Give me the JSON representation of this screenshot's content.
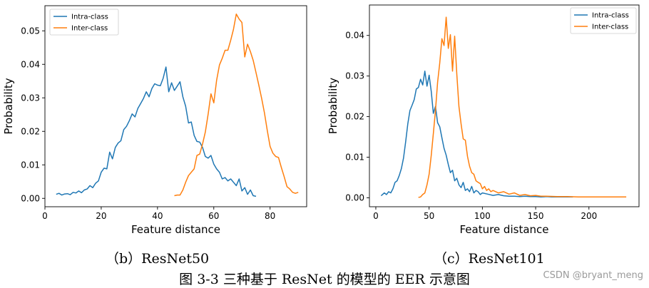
{
  "chart_data": [
    {
      "type": "line",
      "xlabel": "Feature distance",
      "ylabel": "Probability",
      "xlim": [
        0,
        93
      ],
      "ylim": [
        -0.0025,
        0.0575
      ],
      "xticks": [
        0,
        20,
        40,
        60,
        80
      ],
      "yticks": [
        0.0,
        0.01,
        0.02,
        0.03,
        0.04,
        0.05
      ],
      "ytick_labels": [
        "0.00",
        "0.01",
        "0.02",
        "0.03",
        "0.04",
        "0.05"
      ],
      "legend_position": "top-left",
      "series": [
        {
          "name": "Intra-class",
          "color": "#1f77b4",
          "x": [
            4,
            5,
            6,
            7,
            8,
            9,
            10,
            11,
            12,
            13,
            14,
            15,
            16,
            17,
            18,
            19,
            20,
            21,
            22,
            23,
            24,
            25,
            26,
            27,
            28,
            29,
            30,
            31,
            32,
            33,
            34,
            35,
            36,
            37,
            38,
            39,
            40,
            41,
            42,
            43,
            44,
            45,
            46,
            47,
            48,
            49,
            50,
            51,
            52,
            53,
            54,
            55,
            56,
            57,
            58,
            59,
            60,
            61,
            62,
            63,
            64,
            65,
            66,
            67,
            68,
            69,
            70,
            71,
            72,
            73,
            74,
            75
          ],
          "values": [
            0.0012,
            0.0015,
            0.001,
            0.0013,
            0.0014,
            0.0011,
            0.0018,
            0.0016,
            0.0022,
            0.0017,
            0.0025,
            0.0028,
            0.0038,
            0.0032,
            0.0045,
            0.0052,
            0.0078,
            0.009,
            0.0088,
            0.0138,
            0.0118,
            0.0152,
            0.0165,
            0.0172,
            0.0205,
            0.0215,
            0.0232,
            0.0252,
            0.0243,
            0.0268,
            0.0283,
            0.0298,
            0.0318,
            0.0303,
            0.0328,
            0.0342,
            0.0338,
            0.0336,
            0.0358,
            0.0392,
            0.0318,
            0.0345,
            0.0322,
            0.0335,
            0.0348,
            0.0303,
            0.0275,
            0.0225,
            0.0228,
            0.0188,
            0.017,
            0.0168,
            0.0152,
            0.0125,
            0.012,
            0.0128,
            0.0102,
            0.0088,
            0.0078,
            0.0058,
            0.0062,
            0.0052,
            0.0058,
            0.0048,
            0.0038,
            0.0058,
            0.0022,
            0.0032,
            0.0012,
            0.0025,
            0.0008,
            0.0006
          ]
        },
        {
          "name": "Inter-class",
          "color": "#ff7f0e",
          "x": [
            46,
            47,
            48,
            49,
            50,
            51,
            52,
            53,
            54,
            55,
            56,
            57,
            58,
            59,
            60,
            61,
            62,
            63,
            64,
            65,
            66,
            67,
            68,
            69,
            70,
            71,
            72,
            73,
            74,
            75,
            76,
            77,
            78,
            79,
            80,
            81,
            82,
            83,
            84,
            85,
            86,
            87,
            88,
            89,
            90
          ],
          "values": [
            0.0008,
            0.001,
            0.001,
            0.0025,
            0.0048,
            0.0068,
            0.0078,
            0.0088,
            0.0128,
            0.0132,
            0.0162,
            0.0198,
            0.0252,
            0.0312,
            0.0285,
            0.0352,
            0.0398,
            0.0418,
            0.0442,
            0.0442,
            0.0472,
            0.0505,
            0.055,
            0.0535,
            0.0525,
            0.0422,
            0.046,
            0.0438,
            0.0412,
            0.0375,
            0.0338,
            0.0298,
            0.0255,
            0.0202,
            0.0155,
            0.0135,
            0.0125,
            0.0122,
            0.0092,
            0.0065,
            0.0035,
            0.0028,
            0.0018,
            0.0015,
            0.0018
          ]
        }
      ]
    },
    {
      "type": "line",
      "xlabel": "Feature distance",
      "ylabel": "Probability",
      "xlim": [
        -6,
        247
      ],
      "ylim": [
        -0.0022,
        0.0475
      ],
      "xticks": [
        0,
        50,
        100,
        150,
        200
      ],
      "yticks": [
        0.0,
        0.01,
        0.02,
        0.03,
        0.04
      ],
      "ytick_labels": [
        "0.00",
        "0.01",
        "0.02",
        "0.03",
        "0.04"
      ],
      "legend_position": "top-right",
      "series": [
        {
          "name": "Intra-class",
          "color": "#1f77b4",
          "x": [
            5,
            8,
            10,
            12,
            14,
            16,
            18,
            20,
            22,
            24,
            26,
            28,
            30,
            32,
            34,
            36,
            38,
            40,
            42,
            44,
            46,
            48,
            50,
            52,
            54,
            56,
            58,
            60,
            62,
            64,
            66,
            68,
            70,
            72,
            74,
            76,
            78,
            80,
            82,
            84,
            86,
            88,
            90,
            92,
            94,
            96,
            98,
            100,
            105,
            110,
            115,
            120,
            125,
            130,
            135,
            140,
            145,
            150,
            155,
            160,
            165,
            170,
            175,
            180,
            185
          ],
          "values": [
            0.0005,
            0.0012,
            0.0008,
            0.0015,
            0.0012,
            0.0022,
            0.0038,
            0.0042,
            0.0055,
            0.0072,
            0.0098,
            0.0138,
            0.0182,
            0.0215,
            0.0228,
            0.0242,
            0.0268,
            0.0272,
            0.0292,
            0.0278,
            0.0312,
            0.0275,
            0.0302,
            0.0262,
            0.0208,
            0.0225,
            0.0185,
            0.0175,
            0.0148,
            0.0122,
            0.0105,
            0.0082,
            0.0062,
            0.0068,
            0.0042,
            0.0048,
            0.0032,
            0.0025,
            0.0038,
            0.0018,
            0.0022,
            0.0015,
            0.0028,
            0.0012,
            0.0018,
            0.0015,
            0.0008,
            0.0012,
            0.0009,
            0.0006,
            0.0008,
            0.0005,
            0.0004,
            0.0004,
            0.0003,
            0.0004,
            0.0003,
            0.0003,
            0.0002,
            0.0003,
            0.0002,
            0.0002,
            0.0002,
            0.0002,
            0.0002
          ]
        },
        {
          "name": "Inter-class",
          "color": "#ff7f0e",
          "x": [
            40,
            42,
            44,
            46,
            48,
            50,
            52,
            54,
            56,
            58,
            60,
            62,
            64,
            66,
            68,
            70,
            72,
            74,
            76,
            78,
            80,
            82,
            84,
            86,
            88,
            90,
            92,
            94,
            96,
            98,
            100,
            102,
            104,
            106,
            108,
            110,
            115,
            120,
            125,
            130,
            135,
            140,
            145,
            150,
            155,
            160,
            170,
            180,
            190,
            200,
            210,
            220,
            235
          ],
          "values": [
            0.0001,
            0.0002,
            0.0008,
            0.0012,
            0.0032,
            0.0058,
            0.0105,
            0.0158,
            0.0215,
            0.0285,
            0.0332,
            0.0392,
            0.0375,
            0.0445,
            0.0368,
            0.0402,
            0.0312,
            0.0398,
            0.0305,
            0.0225,
            0.0182,
            0.0145,
            0.0142,
            0.0102,
            0.0078,
            0.0062,
            0.0058,
            0.0042,
            0.0038,
            0.0035,
            0.0022,
            0.0028,
            0.0018,
            0.0022,
            0.0015,
            0.0018,
            0.0012,
            0.0015,
            0.0009,
            0.0012,
            0.0006,
            0.0008,
            0.0005,
            0.0006,
            0.0004,
            0.0004,
            0.0003,
            0.0003,
            0.0002,
            0.0002,
            0.0002,
            0.0002,
            0.0002
          ]
        }
      ]
    }
  ],
  "captions": {
    "b": "（b）ResNet50",
    "c": "（c）ResNet101",
    "figure": "图 3-3  三种基于 ResNet 的模型的 EER 示意图"
  },
  "watermark": "CSDN @bryant_meng"
}
